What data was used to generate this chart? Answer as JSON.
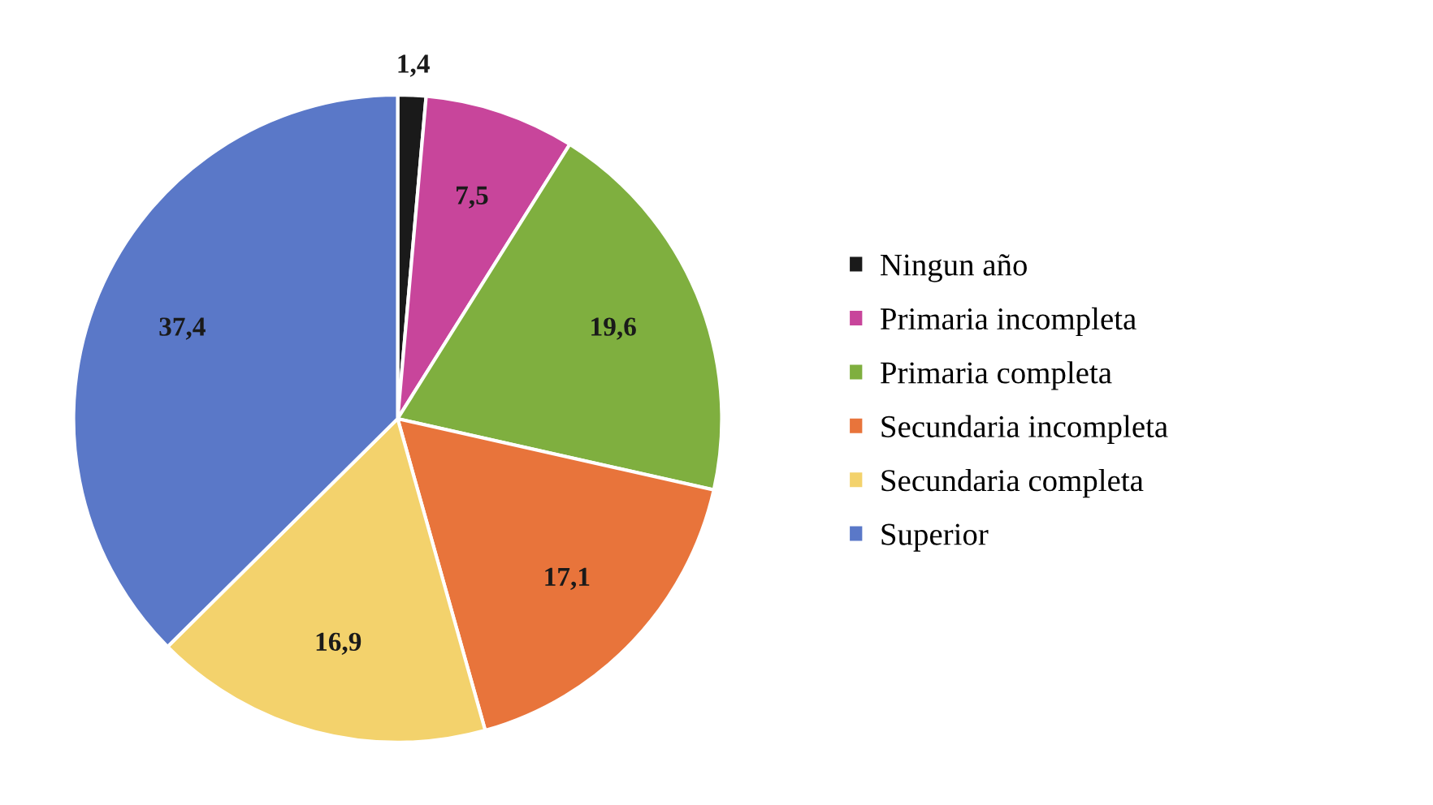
{
  "chart_data": {
    "type": "pie",
    "categories": [
      "Ningun año",
      "Primaria incompleta",
      "Primaria completa",
      "Secundaria incompleta",
      "Secundaria completa",
      "Superior"
    ],
    "values": [
      1.4,
      7.5,
      19.6,
      17.1,
      16.9,
      37.4
    ],
    "value_labels": [
      "1,4",
      "7,5",
      "19,6",
      "17,1",
      "16,9",
      "37,4"
    ],
    "colors": [
      "#1a1a1a",
      "#c8459b",
      "#7faf3f",
      "#e8743b",
      "#f3d26c",
      "#5a78c8"
    ],
    "legend": "right"
  }
}
